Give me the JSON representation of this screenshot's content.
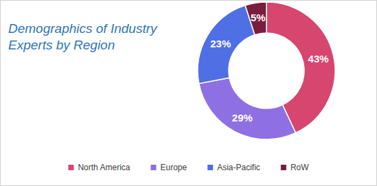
{
  "chart_data": {
    "type": "pie",
    "title": "Demographics of Industry Experts by Region",
    "categories": [
      "North America",
      "Europe",
      "Asia-Pacific",
      "RoW"
    ],
    "values": [
      43,
      29,
      23,
      5
    ],
    "value_labels": [
      "43%",
      "29%",
      "23%",
      "5%"
    ],
    "colors": [
      "#d6466e",
      "#8f70e2",
      "#4f6fe4",
      "#7a1d3c"
    ],
    "data_labels": true,
    "legend": "bottom"
  }
}
